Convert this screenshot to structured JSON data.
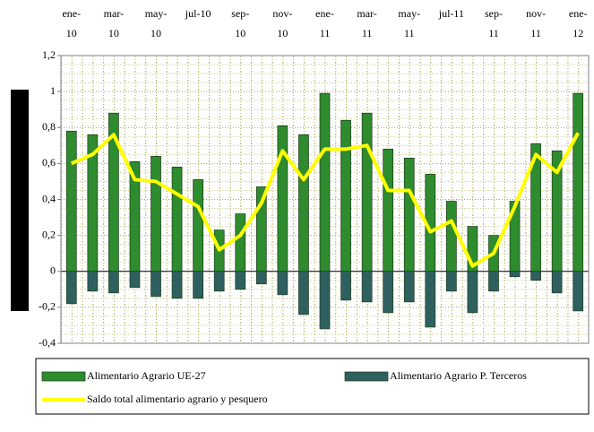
{
  "chart_data": {
    "type": "bar",
    "categories": [
      "ene-10",
      null,
      "mar-10",
      null,
      "may-10",
      null,
      "jul-10",
      null,
      "sep-10",
      null,
      "nov-10",
      null,
      "ene-11",
      null,
      "mar-11",
      null,
      "may-11",
      null,
      "jul-11",
      null,
      "sep-11",
      null,
      "nov-11",
      null,
      "ene-12"
    ],
    "series": [
      {
        "name": "Alimentario Agrario UE-27",
        "type": "bar",
        "color": "#2e8b2e",
        "values": [
          0.78,
          0.76,
          0.88,
          0.61,
          0.64,
          0.58,
          0.51,
          0.23,
          0.32,
          0.47,
          0.81,
          0.76,
          0.99,
          0.84,
          0.88,
          0.68,
          0.63,
          0.54,
          0.39,
          0.25,
          0.2,
          0.39,
          0.71,
          0.67,
          0.99
        ]
      },
      {
        "name": "Alimentario Agrario P. Terceros",
        "type": "bar",
        "color": "#2f6060",
        "values": [
          -0.18,
          -0.11,
          -0.12,
          -0.09,
          -0.14,
          -0.15,
          -0.15,
          -0.11,
          -0.1,
          -0.07,
          -0.13,
          -0.24,
          -0.32,
          -0.16,
          -0.17,
          -0.23,
          -0.17,
          -0.31,
          -0.11,
          -0.23,
          -0.11,
          -0.03,
          -0.05,
          -0.12,
          -0.22
        ]
      },
      {
        "name": "Saldo total alimentario agrario y pesquero",
        "type": "line",
        "color": "#ffff00",
        "values": [
          0.6,
          0.65,
          0.76,
          0.51,
          0.5,
          0.43,
          0.36,
          0.12,
          0.2,
          0.38,
          0.67,
          0.51,
          0.68,
          0.68,
          0.7,
          0.45,
          0.45,
          0.22,
          0.28,
          0.03,
          0.1,
          0.36,
          0.65,
          0.55,
          0.77
        ]
      }
    ],
    "ylim": [
      -0.4,
      1.2
    ],
    "yticks": [
      {
        "value": -0.4,
        "label": "-0,4"
      },
      {
        "value": -0.2,
        "label": "-0,2"
      },
      0,
      {
        "value": 0.2,
        "label": "0,2"
      },
      {
        "value": 0.4,
        "label": "0,4"
      },
      {
        "value": 0.6,
        "label": "0,6"
      },
      {
        "value": 0.8,
        "label": "0,8"
      },
      1,
      {
        "value": 1.2,
        "label": "1,2"
      }
    ],
    "grid": true
  }
}
